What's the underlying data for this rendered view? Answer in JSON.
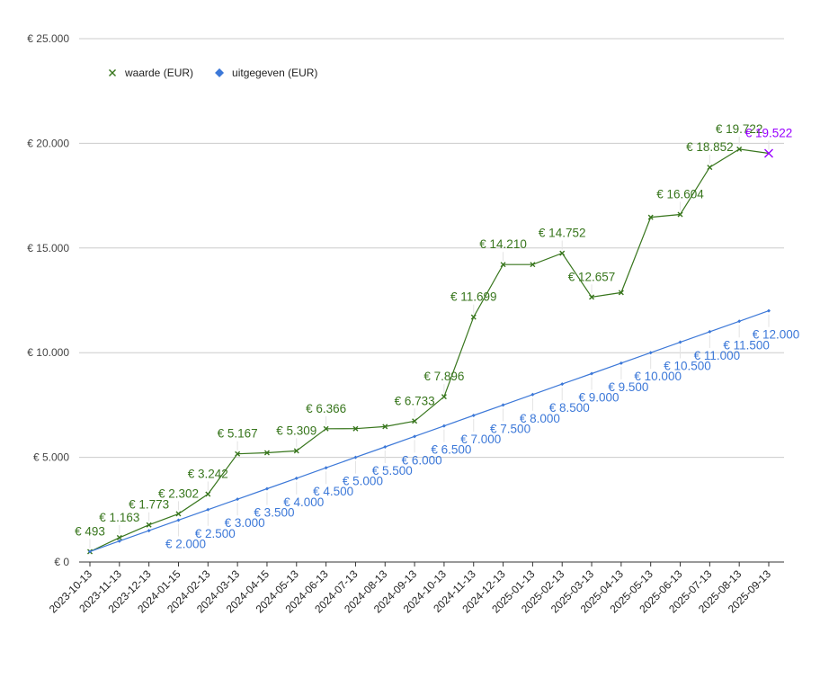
{
  "chart_data": {
    "type": "line",
    "x": [
      "2023-10-13",
      "2023-11-13",
      "2023-12-13",
      "2024-01-15",
      "2024-02-13",
      "2024-03-13",
      "2024-04-15",
      "2024-05-13",
      "2024-06-13",
      "2024-07-13",
      "2024-08-13",
      "2024-09-13",
      "2024-10-13",
      "2024-11-13",
      "2024-12-13",
      "2025-01-13",
      "2025-02-13",
      "2025-03-13",
      "2025-04-13",
      "2025-05-13",
      "2025-06-13",
      "2025-07-13",
      "2025-08-13",
      "2025-09-13"
    ],
    "ylim": [
      0,
      25000
    ],
    "yticks": [
      {
        "value": 0,
        "label": "€ 0"
      },
      {
        "value": 5000,
        "label": "€ 5.000"
      },
      {
        "value": 10000,
        "label": "€ 10.000"
      },
      {
        "value": 15000,
        "label": "€ 15.000"
      },
      {
        "value": 20000,
        "label": "€ 20.000"
      },
      {
        "value": 25000,
        "label": "€ 25.000"
      }
    ],
    "grid": true,
    "legend_position": "top-left",
    "series": [
      {
        "name": "waarde (EUR)",
        "color": "#38761d",
        "marker": "x",
        "values": [
          493,
          1163,
          1773,
          2302,
          3242,
          5167,
          5220,
          5309,
          6366,
          6370,
          6470,
          6733,
          7896,
          11699,
          14210,
          14210,
          14752,
          12657,
          12870,
          16470,
          16604,
          18852,
          19722,
          19522
        ],
        "labels": [
          "€ 493",
          "€ 1.163",
          "€ 1.773",
          "€ 2.302",
          "€ 3.242",
          "€ 5.167",
          "",
          "€ 5.309",
          "€ 6.366",
          "",
          "",
          "€ 6.733",
          "€ 7.896",
          "€ 11.699",
          "€ 14.210",
          "",
          "€ 14.752",
          "€ 12.657",
          "",
          "",
          "€ 16.604",
          "€ 18.852",
          "€ 19.722",
          "€ 19.522"
        ]
      },
      {
        "name": "uitgegeven (EUR)",
        "color": "#3c78d8",
        "marker": "diamond",
        "values": [
          500,
          1000,
          1500,
          2000,
          2500,
          3000,
          3500,
          4000,
          4500,
          5000,
          5500,
          6000,
          6500,
          7000,
          7500,
          8000,
          8500,
          9000,
          9500,
          10000,
          10500,
          11000,
          11500,
          12000
        ],
        "labels": [
          "",
          "",
          "",
          "€ 2.000",
          "€ 2.500",
          "€ 3.000",
          "€ 3.500",
          "€ 4.000",
          "€ 4.500",
          "€ 5.000",
          "€ 5.500",
          "€ 6.000",
          "€ 6.500",
          "€ 7.000",
          "€ 7.500",
          "€ 8.000",
          "€ 8.500",
          "€ 9.000",
          "€ 9.500",
          "€ 10.000",
          "€ 10.500",
          "€ 11.000",
          "€ 11.500",
          "€ 12.000"
        ]
      }
    ],
    "highlight": {
      "series": 0,
      "index": 23,
      "color": "#9900ff"
    }
  }
}
